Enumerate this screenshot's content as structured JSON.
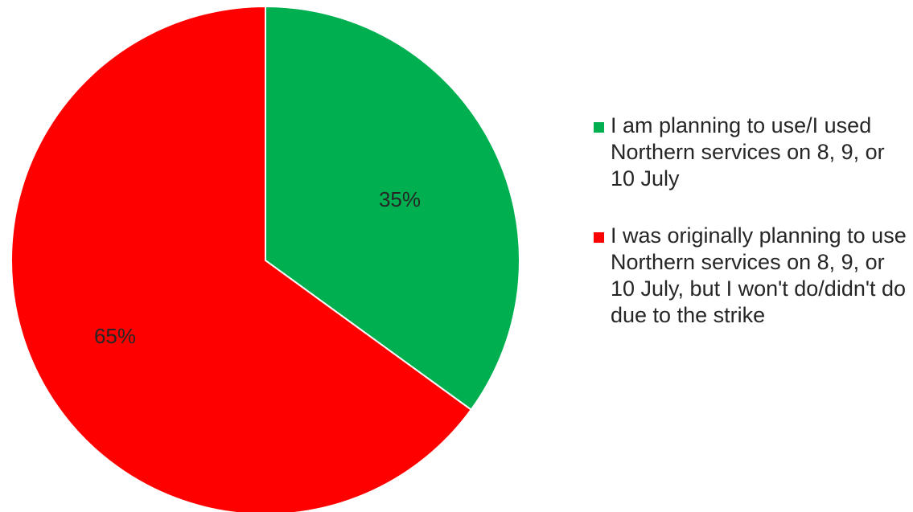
{
  "chart_data": {
    "type": "pie",
    "slices": [
      {
        "label": "I am planning to use/I used Northern services on 8, 9, or 10 July",
        "value": 35,
        "display": "35%",
        "color": "#00b050"
      },
      {
        "label": "I was originally planning to use Northern services on 8, 9, or 10 July, but I won't do/didn't do due to the strike",
        "value": 65,
        "display": "65%",
        "color": "#ff0000"
      }
    ],
    "legend_position": "right"
  }
}
